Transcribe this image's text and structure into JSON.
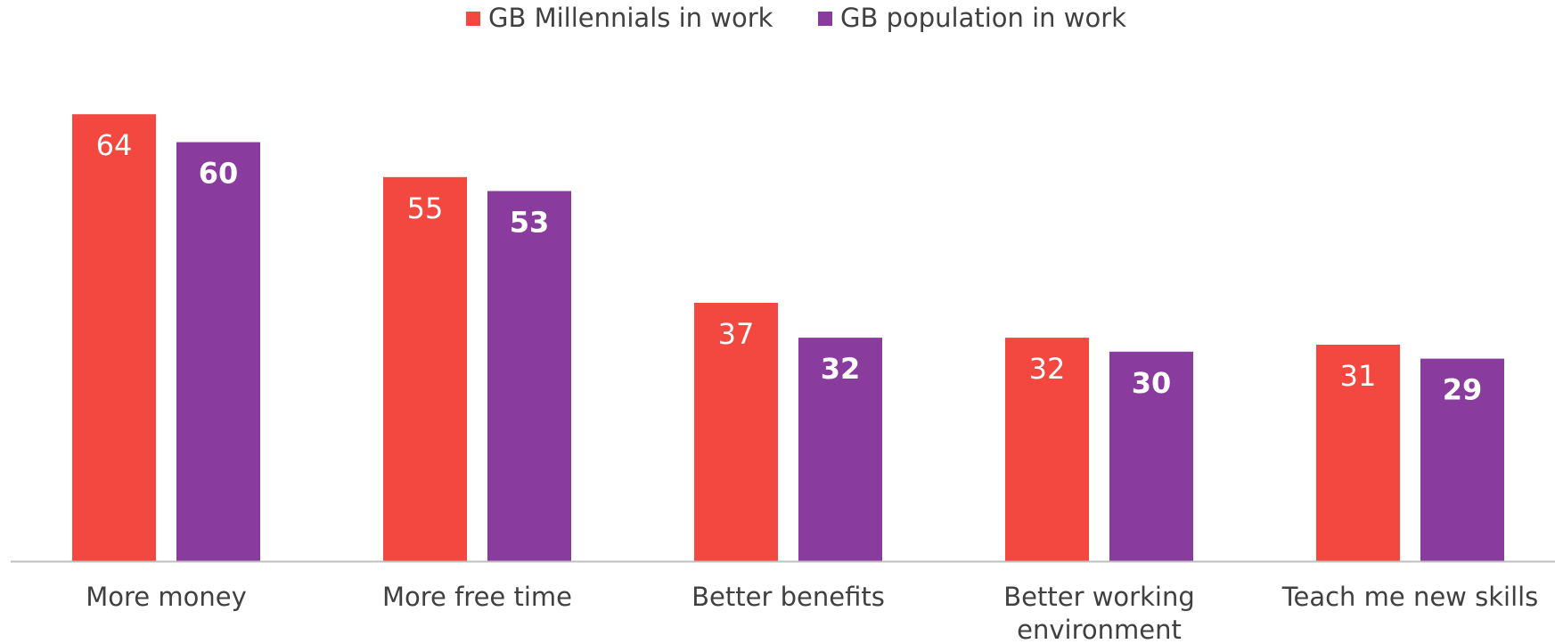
{
  "chart_data": {
    "type": "bar",
    "categories": [
      "More money",
      "More free time",
      "Better benefits",
      "Better working environment",
      "Teach me new skills"
    ],
    "category_lines": [
      [
        "More money"
      ],
      [
        "More free time"
      ],
      [
        "Better benefits"
      ],
      [
        "Better working",
        "environment"
      ],
      [
        "Teach me new skills"
      ]
    ],
    "series": [
      {
        "name": "GB Millennials in work",
        "color": "#f2483f",
        "label_color": "#ffffff",
        "label_bold": false,
        "values": [
          64,
          55,
          37,
          32,
          31
        ]
      },
      {
        "name": "GB population in work",
        "color": "#8a3b9e",
        "label_color": "#ffffff",
        "label_bold": true,
        "values": [
          60,
          53,
          32,
          30,
          29
        ]
      }
    ],
    "title": "",
    "xlabel": "",
    "ylabel": "",
    "ylim": [
      0,
      70
    ],
    "grid": false,
    "legend": "top-center",
    "axis_color": "#bfbfbf",
    "text_color": "#404040"
  }
}
